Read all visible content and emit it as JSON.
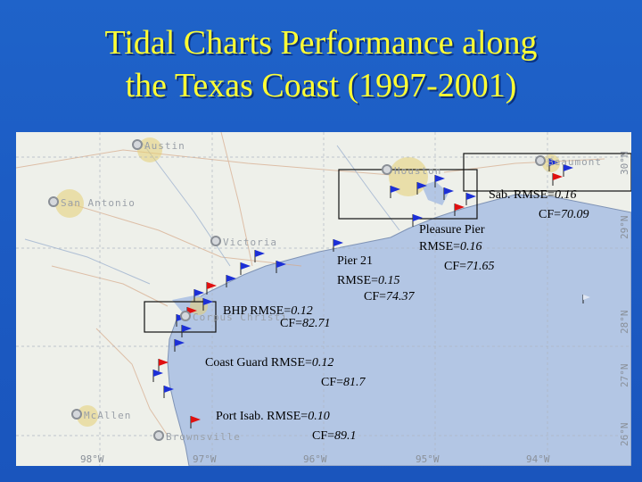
{
  "title": {
    "line1": "Tidal Charts Performance along",
    "line2": "the Texas Coast (1997-2001)"
  },
  "map": {
    "cities": [
      "Austin",
      "San Antonio",
      "Victoria",
      "Houston",
      "Beaumont",
      "Corpus Christi",
      "McAllen",
      "Brownsville"
    ],
    "longitude_ticks": [
      "98°W",
      "97°W",
      "96°W",
      "95°W",
      "94°W"
    ],
    "latitude_ticks": [
      "30°N",
      "29°N",
      "28°N",
      "27°N",
      "26°N"
    ],
    "stations": {
      "sabine": {
        "name": "Sab. RMSE=",
        "rmse": "0.16",
        "cf_label": "CF=",
        "cf": "70.09"
      },
      "pleasure_pier": {
        "name": "Pleasure Pier",
        "rmse_label": "RMSE=",
        "rmse": "0.16",
        "cf_label": "CF=",
        "cf": "71.65"
      },
      "pier21": {
        "name": "Pier 21",
        "rmse_label": "RMSE=",
        "rmse": "0.15",
        "cf_label": "CF=",
        "cf": "74.37"
      },
      "bhp": {
        "name": "BHP RMSE=",
        "rmse": "0.12",
        "cf_label": "CF=",
        "cf": "82.71"
      },
      "coast_guard": {
        "name": "Coast Guard RMSE=",
        "rmse": "0.12",
        "cf_label": "CF=",
        "cf": "81.7"
      },
      "port_isabel": {
        "name": "Port Isab. RMSE=",
        "rmse": "0.10",
        "cf_label": "CF=",
        "cf": "89.1"
      }
    },
    "colors": {
      "title": "#ffff33",
      "background": "#1c5cc4",
      "gulf": "#b3c6e4",
      "land": "#eef0ea",
      "flag_blue": "#1c2fd6",
      "flag_red": "#e01010"
    }
  }
}
